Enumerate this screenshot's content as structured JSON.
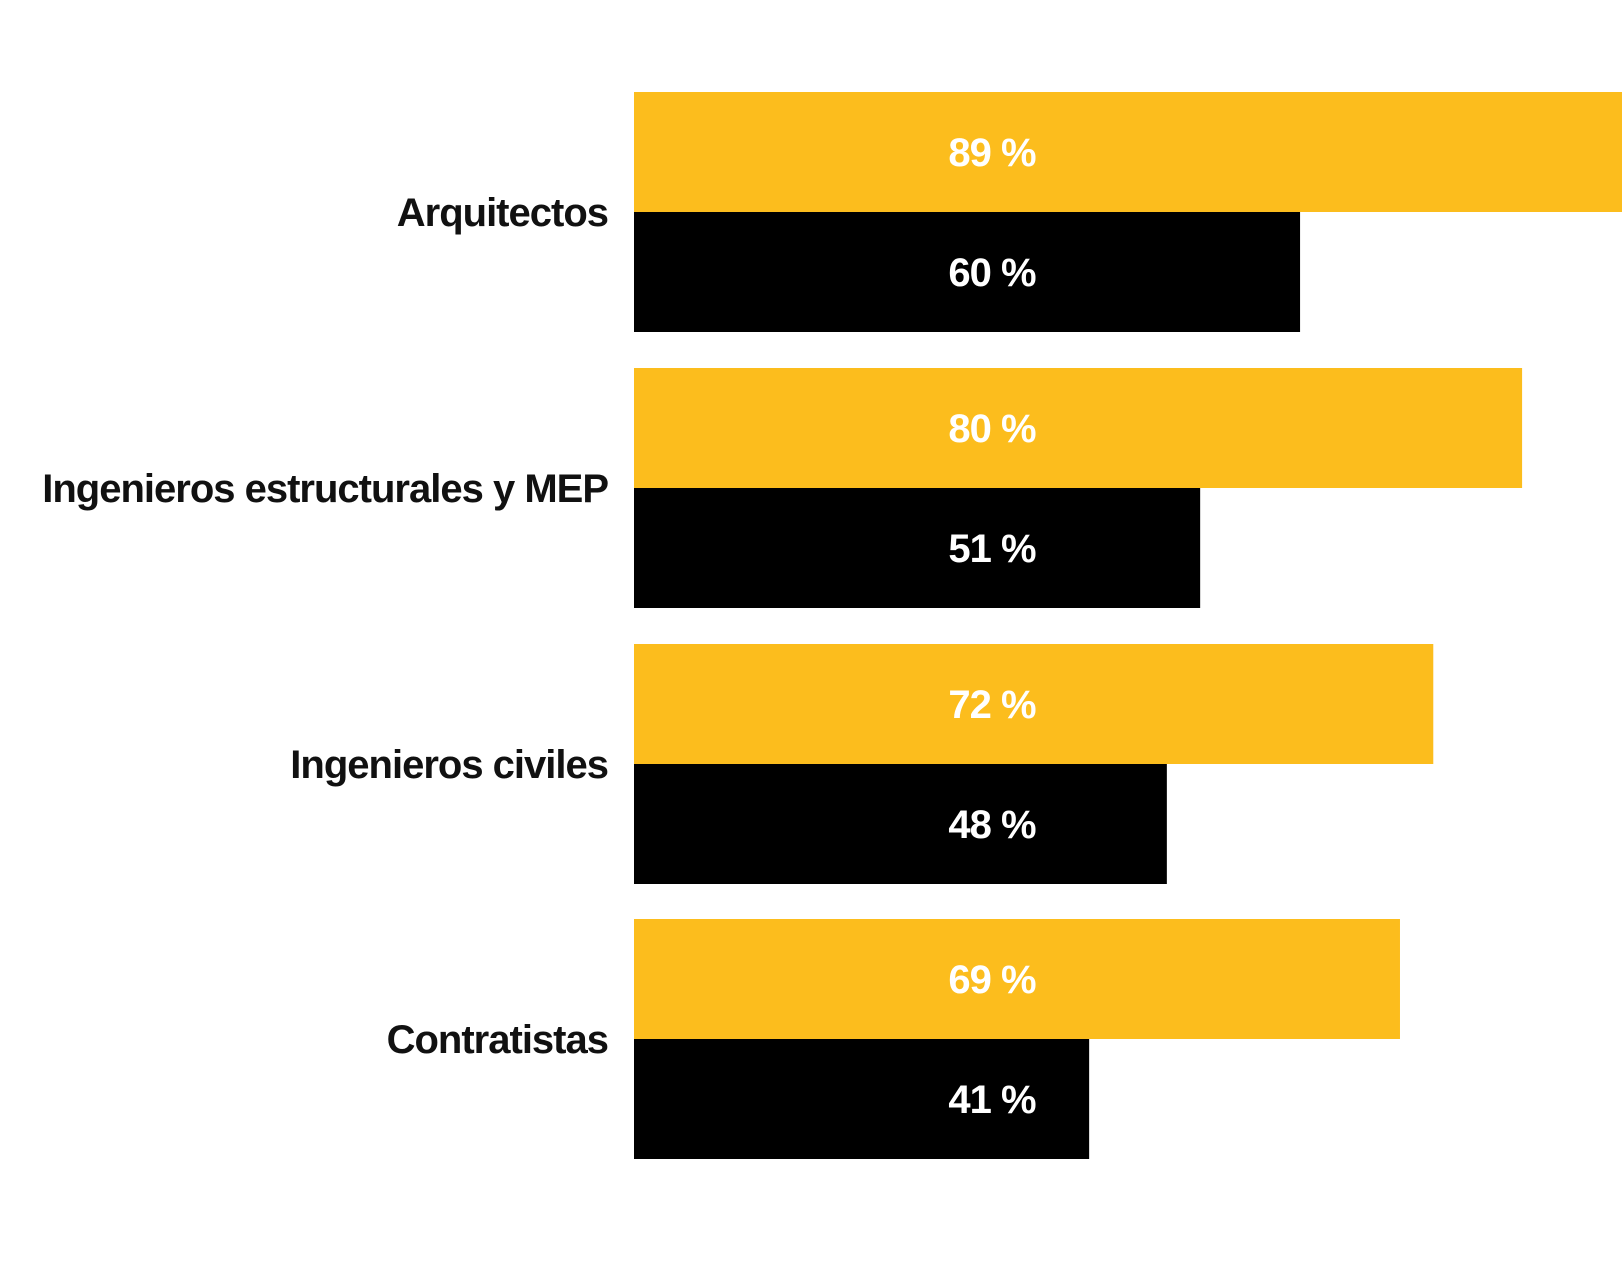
{
  "chart_data": {
    "type": "bar",
    "orientation": "horizontal",
    "categories": [
      "Arquitectos",
      "Ingenieros estructurales y MEP",
      "Ingenieros civiles",
      "Contratistas"
    ],
    "series": [
      {
        "color": "#FCBD1D",
        "values": [
          89,
          80,
          72,
          69
        ],
        "value_labels": [
          "89 %",
          "80 %",
          "72 %",
          "69 %"
        ]
      },
      {
        "color": "#000000",
        "values": [
          60,
          51,
          48,
          41
        ],
        "value_labels": [
          "60 %",
          "51 %",
          "48 %",
          "41 %"
        ]
      }
    ],
    "xlim": [
      0,
      89
    ],
    "grid": false,
    "legend": "none"
  }
}
